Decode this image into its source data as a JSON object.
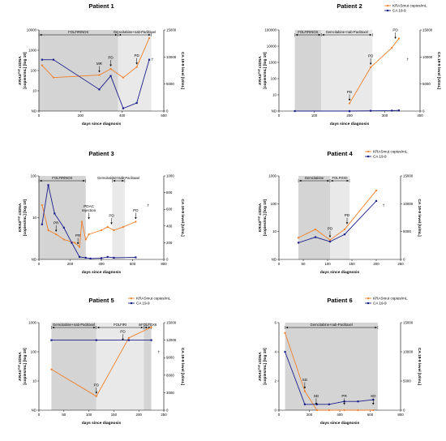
{
  "figure": {
    "xlabel": "days since diagnosis",
    "left_label_main": "KRAS",
    "left_label_sup": "mut",
    "left_label_rest": " ctDNA",
    "left_label_unit": "[copies/mL] [log 10]",
    "right_label": "CA 19-9 level [U/mL]",
    "nd_label": "ND",
    "legend": [
      "KRASmut copies/mL",
      "CA 19-9"
    ],
    "death_marker": "†"
  },
  "colors": {
    "ctdna": "#f07f2a",
    "ca199": "#1b1f8c",
    "region_dark": "#d4d4d4",
    "region_light": "#e9e9e9"
  },
  "chart_data": [
    {
      "type": "line",
      "title": "Patient 1",
      "legend_position": "none",
      "xlim": [
        0,
        600
      ],
      "xticks": [
        0,
        200,
        400,
        600
      ],
      "ylim_log": [
        1,
        10000
      ],
      "yticks": [
        "ND",
        "10",
        "100",
        "1000",
        "10000"
      ],
      "y2lim": [
        0,
        15000
      ],
      "y2ticks": [
        0,
        5000,
        10000,
        15000
      ],
      "regions": [
        {
          "label": "FOLFIRINOX",
          "start": 0,
          "end": 380,
          "shade": "dark"
        },
        {
          "label": "Gemcitabine+nab-Paclitaxel",
          "start": 380,
          "end": 540,
          "shade": "light"
        }
      ],
      "series": [
        {
          "name": "KRASmut copies/mL",
          "axis": "left",
          "x": [
            15,
            70,
            290,
            345,
            405,
            470,
            530
          ],
          "y": [
            180,
            45,
            60,
            120,
            45,
            150,
            4000
          ]
        },
        {
          "name": "CA 19-9",
          "axis": "right",
          "x": [
            15,
            70,
            290,
            345,
            405,
            470,
            530
          ],
          "y": [
            9500,
            9500,
            4000,
            6500,
            500,
            1500,
            9500
          ]
        }
      ],
      "annotations": [
        {
          "label": "MR",
          "x": 290,
          "y": 60
        },
        {
          "label": "PD",
          "x": 345,
          "y": 120
        },
        {
          "label": "PD",
          "x": 470,
          "y": 150
        }
      ],
      "death_x": 545
    },
    {
      "type": "line",
      "title": "Patient 2",
      "legend_position": "top-right",
      "xlim": [
        0,
        400
      ],
      "xticks": [
        0,
        100,
        200,
        300,
        400
      ],
      "ylim_log": [
        1,
        100000
      ],
      "yticks": [
        "ND",
        "10",
        "100",
        "1000",
        "10000",
        "100000"
      ],
      "y2lim": [
        0,
        15000
      ],
      "y2ticks": [
        0,
        5000,
        10000,
        15000
      ],
      "regions": [
        {
          "label": "FOLFIRINOX",
          "start": 45,
          "end": 120,
          "shade": "dark"
        },
        {
          "label": "Gemcitabine+nab-Paclitaxel",
          "start": 120,
          "end": 265,
          "shade": "light"
        }
      ],
      "series": [
        {
          "name": "KRASmut copies/mL",
          "axis": "left",
          "x": [
            200,
            260,
            320,
            340
          ],
          "y": [
            3,
            500,
            8000,
            30000
          ]
        },
        {
          "name": "CA 19-9",
          "axis": "right",
          "x": [
            45,
            200,
            260,
            320,
            340
          ],
          "y": [
            0,
            0,
            50,
            80,
            120
          ]
        }
      ],
      "annotations": [
        {
          "label": "PD",
          "x": 200,
          "y": 3
        },
        {
          "label": "PD",
          "x": 260,
          "y": 500
        },
        {
          "label": "PD",
          "x": 330,
          "y": 20000
        }
      ],
      "death_x": 365
    },
    {
      "type": "line",
      "title": "Patient 3",
      "legend_position": "none",
      "xlim": [
        0,
        800
      ],
      "xticks": [
        0,
        200,
        400,
        600,
        800
      ],
      "ylim_log": [
        1,
        100
      ],
      "yticks": [
        "ND",
        "10",
        "100"
      ],
      "y2lim": [
        0,
        1000
      ],
      "y2ticks": [
        0,
        200,
        400,
        600,
        800,
        1000
      ],
      "regions": [
        {
          "label": "FOLFIRINOX",
          "start": 0,
          "end": 300,
          "shade": "dark"
        },
        {
          "label": "Gemcitabine+nab-Paclitaxel",
          "start": 470,
          "end": 550,
          "shade": "light"
        }
      ],
      "series": [
        {
          "name": "KRASmut copies/mL",
          "axis": "left",
          "x": [
            20,
            60,
            110,
            160,
            230,
            260,
            275,
            300,
            320,
            400,
            440,
            480,
            540,
            620
          ],
          "y": [
            20,
            5,
            4,
            3,
            2.5,
            2,
            8,
            3,
            4,
            5,
            6,
            5,
            6,
            8
          ]
        },
        {
          "name": "CA 19-9",
          "axis": "right",
          "x": [
            20,
            60,
            100,
            160,
            210,
            260,
            300,
            330,
            400,
            440,
            480,
            620
          ],
          "y": [
            420,
            890,
            550,
            380,
            200,
            30,
            20,
            10,
            15,
            30,
            20,
            25
          ]
        }
      ],
      "annotations": [
        {
          "label": "PR",
          "x": 110,
          "y": 4
        },
        {
          "label": "PR",
          "x": 250,
          "y": 2
        },
        {
          "label": "PDAC\nrejection",
          "x": 320,
          "y": 8
        },
        {
          "label": "PD",
          "x": 465,
          "y": 6
        },
        {
          "label": "PD",
          "x": 620,
          "y": 8
        }
      ],
      "death_x": 700
    },
    {
      "type": "line",
      "title": "Patient 4",
      "legend_position": "top-right",
      "xlim": [
        0,
        250
      ],
      "xticks": [
        0,
        50,
        100,
        150,
        200,
        250
      ],
      "ylim_log": [
        1,
        1000
      ],
      "yticks": [
        "ND",
        "10",
        "100",
        "1000"
      ],
      "y2lim": [
        0,
        15000
      ],
      "y2ticks": [
        0,
        5000,
        10000,
        15000
      ],
      "regions": [
        {
          "label": "Gemcitabine",
          "start": 40,
          "end": 105,
          "shade": "dark"
        },
        {
          "label": "FOLFOXII",
          "start": 105,
          "end": 145,
          "shade": "light"
        }
      ],
      "series": [
        {
          "name": "KRASmut copies/mL",
          "axis": "left",
          "x": [
            40,
            75,
            105,
            135,
            200
          ],
          "y": [
            6,
            12,
            5,
            12,
            300
          ]
        },
        {
          "name": "CA 19-9",
          "axis": "right",
          "x": [
            40,
            75,
            105,
            135,
            200
          ],
          "y": [
            3000,
            4000,
            3200,
            4500,
            10500
          ]
        }
      ],
      "annotations": [
        {
          "label": "PD",
          "x": 105,
          "y": 5
        },
        {
          "label": "PD",
          "x": 140,
          "y": 15
        }
      ],
      "death_x": 215
    },
    {
      "type": "line",
      "title": "Patient 5",
      "legend_position": "top-right",
      "xlim": [
        0,
        250
      ],
      "xticks": [
        0,
        50,
        100,
        150,
        200,
        250
      ],
      "ylim_log": [
        1,
        1000
      ],
      "yticks": [
        "ND",
        "10",
        "100",
        "1000"
      ],
      "y2lim": [
        0,
        15000
      ],
      "y2ticks": [
        0,
        3000,
        6000,
        9000,
        12000,
        15000
      ],
      "regions": [
        {
          "label": "Gemcitabine+nab-Paclitaxel",
          "start": 25,
          "end": 115,
          "shade": "dark"
        },
        {
          "label": "FOLFIRI",
          "start": 115,
          "end": 210,
          "shade": "light"
        },
        {
          "label": "mFOLFOX6",
          "start": 210,
          "end": 225,
          "shade": "dark"
        }
      ],
      "series": [
        {
          "name": "KRASmut copies/mL",
          "axis": "left",
          "x": [
            25,
            115,
            180,
            225
          ],
          "y": [
            25,
            3,
            300,
            700
          ]
        },
        {
          "name": "CA 19-9",
          "axis": "right",
          "x": [
            25,
            115,
            180,
            225
          ],
          "y": [
            12000,
            12000,
            12000,
            12000
          ]
        }
      ],
      "annotations": [
        {
          "label": "PD",
          "x": 115,
          "y": 3
        },
        {
          "label": "PD",
          "x": 168,
          "y": 200
        }
      ],
      "death_x": 240
    },
    {
      "type": "line",
      "title": "Patient 6",
      "legend_position": "top-right",
      "xlim": [
        0,
        800
      ],
      "xticks": [
        0,
        200,
        400,
        600,
        800
      ],
      "ylim": [
        0,
        6
      ],
      "yticks": [
        "0",
        "2",
        "4",
        "6"
      ],
      "y2lim": [
        0,
        15000
      ],
      "y2ticks": [
        0,
        5000,
        10000,
        15000
      ],
      "regions": [
        {
          "label": "Gemcitabine+nab-Paclitaxel",
          "start": 40,
          "end": 650,
          "shade": "dark"
        }
      ],
      "series": [
        {
          "name": "KRASmut copies/mL",
          "axis": "left",
          "x": [
            40,
            170,
            250,
            330,
            430,
            520,
            620
          ],
          "y": [
            5.3,
            1.3,
            0,
            0,
            0,
            0,
            0
          ]
        },
        {
          "name": "CA 19-9",
          "axis": "right",
          "x": [
            40,
            170,
            250,
            330,
            430,
            520,
            620
          ],
          "y": [
            10000,
            1000,
            1000,
            1000,
            1500,
            1500,
            1800
          ]
        }
      ],
      "annotations": [
        {
          "label": "SD",
          "x": 170,
          "y": 1.3
        },
        {
          "label": "SD",
          "x": 245,
          "y": 0.2
        },
        {
          "label": "PR",
          "x": 430,
          "y": 0.2
        },
        {
          "label": "SD",
          "x": 620,
          "y": 0.2
        }
      ],
      "death_x": null
    }
  ]
}
